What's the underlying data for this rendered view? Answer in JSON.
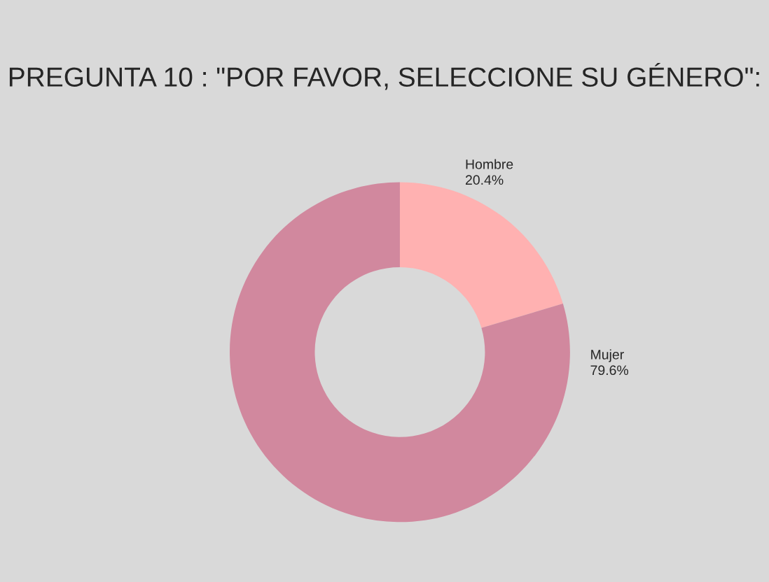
{
  "chart_data": {
    "type": "donut",
    "title": "PREGUNTA 10 : \"POR FAVOR, SELECCIONE SU GÉNERO\":",
    "categories": [
      "Hombre",
      "Mujer"
    ],
    "values": [
      20.4,
      79.6
    ],
    "value_labels": [
      "20.4%",
      "79.6%"
    ],
    "colors": [
      "#ffb1b1",
      "#d1889e"
    ],
    "legend": false
  }
}
